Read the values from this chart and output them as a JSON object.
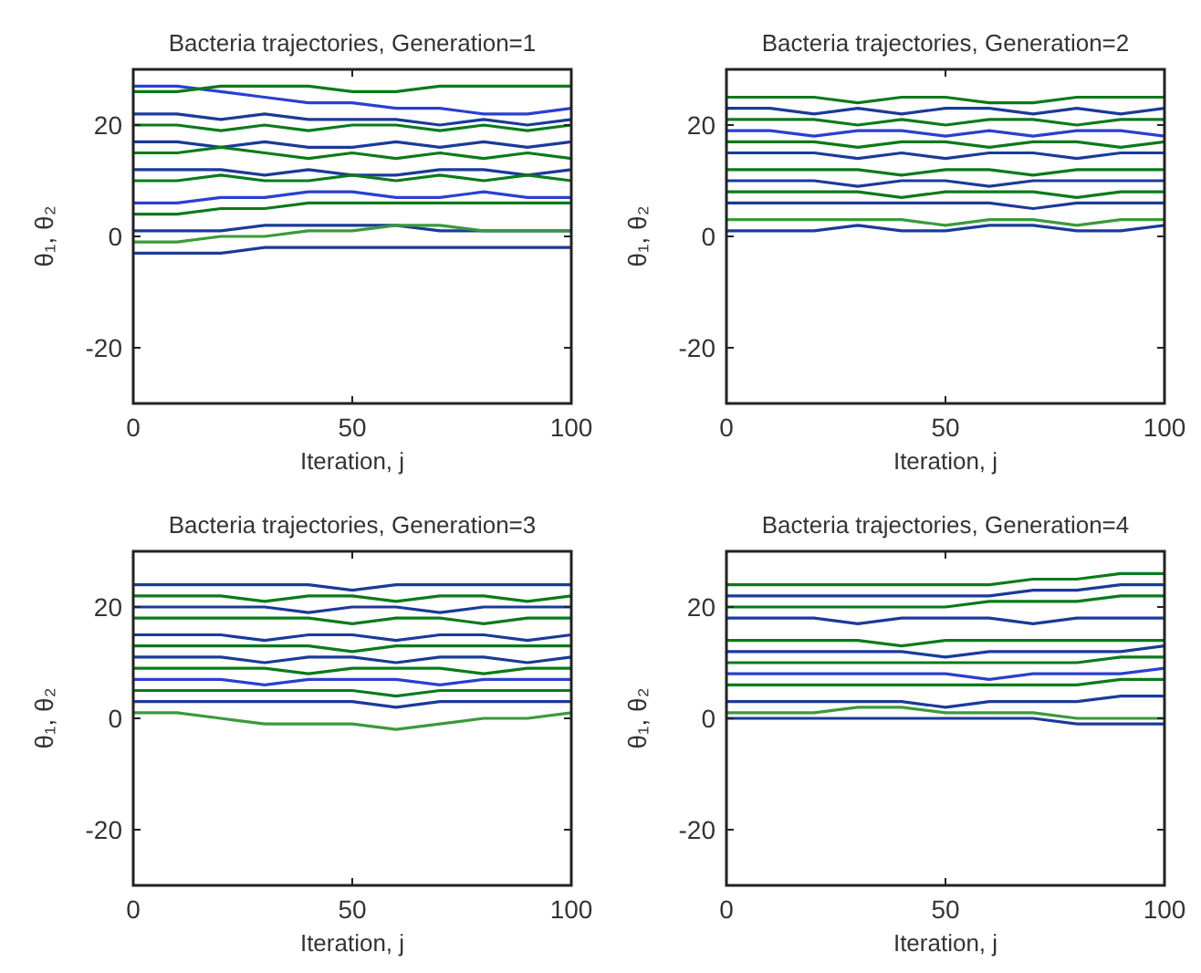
{
  "chart_data": [
    {
      "type": "line",
      "title": "Bacteria trajectories, Generation=1",
      "xlabel": "Iteration, j",
      "ylabel": "θ₁, θ₂",
      "x": [
        0,
        10,
        20,
        30,
        40,
        50,
        60,
        70,
        80,
        90,
        100
      ],
      "xlim": [
        0,
        100
      ],
      "xticks": [
        0,
        50,
        100
      ],
      "ylim": [
        -30,
        30
      ],
      "yticks": [
        -20,
        0,
        20
      ],
      "series": [
        {
          "color": "#2a3fd0",
          "values": [
            27,
            27,
            26,
            25,
            24,
            24,
            23,
            23,
            22,
            22,
            23
          ]
        },
        {
          "color": "#0a7a1a",
          "values": [
            26,
            26,
            27,
            27,
            27,
            26,
            26,
            27,
            27,
            27,
            27
          ]
        },
        {
          "color": "#1a3a9a",
          "values": [
            22,
            22,
            21,
            22,
            21,
            21,
            21,
            20,
            21,
            20,
            21
          ]
        },
        {
          "color": "#0a7a1a",
          "values": [
            20,
            20,
            19,
            20,
            19,
            20,
            20,
            19,
            20,
            19,
            20
          ]
        },
        {
          "color": "#1a3a9a",
          "values": [
            17,
            17,
            16,
            17,
            16,
            16,
            17,
            16,
            17,
            16,
            17
          ]
        },
        {
          "color": "#0a7a1a",
          "values": [
            15,
            15,
            16,
            15,
            14,
            15,
            14,
            15,
            14,
            15,
            14
          ]
        },
        {
          "color": "#1a3a9a",
          "values": [
            12,
            12,
            12,
            11,
            12,
            11,
            11,
            12,
            12,
            11,
            12
          ]
        },
        {
          "color": "#0a7a1a",
          "values": [
            10,
            10,
            11,
            10,
            10,
            11,
            10,
            11,
            10,
            11,
            10
          ]
        },
        {
          "color": "#2a3fd0",
          "values": [
            6,
            6,
            7,
            7,
            8,
            8,
            7,
            7,
            8,
            7,
            7
          ]
        },
        {
          "color": "#0a7a1a",
          "values": [
            4,
            4,
            5,
            5,
            6,
            6,
            6,
            6,
            6,
            6,
            6
          ]
        },
        {
          "color": "#1a3a9a",
          "values": [
            1,
            1,
            1,
            2,
            2,
            2,
            2,
            1,
            1,
            1,
            1
          ]
        },
        {
          "color": "#3a9a3a",
          "values": [
            -1,
            -1,
            0,
            0,
            1,
            1,
            2,
            2,
            1,
            1,
            1
          ]
        },
        {
          "color": "#1a3a9a",
          "values": [
            -3,
            -3,
            -3,
            -2,
            -2,
            -2,
            -2,
            -2,
            -2,
            -2,
            -2
          ]
        }
      ]
    },
    {
      "type": "line",
      "title": "Bacteria trajectories, Generation=2",
      "xlabel": "Iteration, j",
      "ylabel": "θ₁, θ₂",
      "x": [
        0,
        10,
        20,
        30,
        40,
        50,
        60,
        70,
        80,
        90,
        100
      ],
      "xlim": [
        0,
        100
      ],
      "xticks": [
        0,
        50,
        100
      ],
      "ylim": [
        -30,
        30
      ],
      "yticks": [
        -20,
        0,
        20
      ],
      "series": [
        {
          "color": "#0a7a1a",
          "values": [
            25,
            25,
            25,
            24,
            25,
            25,
            24,
            24,
            25,
            25,
            25
          ]
        },
        {
          "color": "#1a3a9a",
          "values": [
            23,
            23,
            22,
            23,
            22,
            23,
            23,
            22,
            23,
            22,
            23
          ]
        },
        {
          "color": "#0a7a1a",
          "values": [
            21,
            21,
            21,
            20,
            21,
            20,
            21,
            21,
            20,
            21,
            21
          ]
        },
        {
          "color": "#2a3fd0",
          "values": [
            19,
            19,
            18,
            19,
            19,
            18,
            19,
            18,
            19,
            19,
            18
          ]
        },
        {
          "color": "#0a7a1a",
          "values": [
            17,
            17,
            17,
            16,
            17,
            17,
            16,
            17,
            17,
            16,
            17
          ]
        },
        {
          "color": "#1a3a9a",
          "values": [
            15,
            15,
            15,
            14,
            15,
            14,
            15,
            15,
            14,
            15,
            15
          ]
        },
        {
          "color": "#0a7a1a",
          "values": [
            12,
            12,
            12,
            12,
            11,
            12,
            12,
            11,
            12,
            12,
            12
          ]
        },
        {
          "color": "#1a3a9a",
          "values": [
            10,
            10,
            10,
            9,
            10,
            10,
            9,
            10,
            10,
            10,
            10
          ]
        },
        {
          "color": "#0a7a1a",
          "values": [
            8,
            8,
            8,
            8,
            7,
            8,
            8,
            8,
            7,
            8,
            8
          ]
        },
        {
          "color": "#1a3a9a",
          "values": [
            6,
            6,
            6,
            6,
            6,
            6,
            6,
            5,
            6,
            6,
            6
          ]
        },
        {
          "color": "#3a9a3a",
          "values": [
            3,
            3,
            3,
            3,
            3,
            2,
            3,
            3,
            2,
            3,
            3
          ]
        },
        {
          "color": "#1a3a9a",
          "values": [
            1,
            1,
            1,
            2,
            1,
            1,
            2,
            2,
            1,
            1,
            2
          ]
        }
      ]
    },
    {
      "type": "line",
      "title": "Bacteria trajectories, Generation=3",
      "xlabel": "Iteration, j",
      "ylabel": "θ₁, θ₂",
      "x": [
        0,
        10,
        20,
        30,
        40,
        50,
        60,
        70,
        80,
        90,
        100
      ],
      "xlim": [
        0,
        100
      ],
      "xticks": [
        0,
        50,
        100
      ],
      "ylim": [
        -30,
        30
      ],
      "yticks": [
        -20,
        0,
        20
      ],
      "series": [
        {
          "color": "#1a3a9a",
          "values": [
            24,
            24,
            24,
            24,
            24,
            23,
            24,
            24,
            24,
            24,
            24
          ]
        },
        {
          "color": "#0a7a1a",
          "values": [
            22,
            22,
            22,
            21,
            22,
            22,
            21,
            22,
            22,
            21,
            22
          ]
        },
        {
          "color": "#1a3a9a",
          "values": [
            20,
            20,
            20,
            20,
            19,
            20,
            20,
            19,
            20,
            20,
            20
          ]
        },
        {
          "color": "#0a7a1a",
          "values": [
            18,
            18,
            18,
            18,
            18,
            17,
            18,
            18,
            17,
            18,
            18
          ]
        },
        {
          "color": "#1a3a9a",
          "values": [
            15,
            15,
            15,
            14,
            15,
            15,
            14,
            15,
            15,
            14,
            15
          ]
        },
        {
          "color": "#0a7a1a",
          "values": [
            13,
            13,
            13,
            13,
            13,
            12,
            13,
            13,
            13,
            13,
            13
          ]
        },
        {
          "color": "#1a3a9a",
          "values": [
            11,
            11,
            11,
            10,
            11,
            11,
            10,
            11,
            11,
            10,
            11
          ]
        },
        {
          "color": "#0a7a1a",
          "values": [
            9,
            9,
            9,
            9,
            8,
            9,
            9,
            9,
            8,
            9,
            9
          ]
        },
        {
          "color": "#2a3fd0",
          "values": [
            7,
            7,
            7,
            6,
            7,
            7,
            7,
            6,
            7,
            7,
            7
          ]
        },
        {
          "color": "#0a7a1a",
          "values": [
            5,
            5,
            5,
            5,
            5,
            5,
            4,
            5,
            5,
            5,
            5
          ]
        },
        {
          "color": "#1a3a9a",
          "values": [
            3,
            3,
            3,
            3,
            3,
            3,
            2,
            3,
            3,
            3,
            3
          ]
        },
        {
          "color": "#3a9a3a",
          "values": [
            1,
            1,
            0,
            -1,
            -1,
            -1,
            -2,
            -1,
            0,
            0,
            1
          ]
        }
      ]
    },
    {
      "type": "line",
      "title": "Bacteria trajectories, Generation=4",
      "xlabel": "Iteration, j",
      "ylabel": "θ₁, θ₂",
      "x": [
        0,
        10,
        20,
        30,
        40,
        50,
        60,
        70,
        80,
        90,
        100
      ],
      "xlim": [
        0,
        100
      ],
      "xticks": [
        0,
        50,
        100
      ],
      "ylim": [
        -30,
        30
      ],
      "yticks": [
        -20,
        0,
        20
      ],
      "series": [
        {
          "color": "#0a7a1a",
          "values": [
            24,
            24,
            24,
            24,
            24,
            24,
            24,
            25,
            25,
            26,
            26
          ]
        },
        {
          "color": "#1a3a9a",
          "values": [
            22,
            22,
            22,
            22,
            22,
            22,
            22,
            23,
            23,
            24,
            24
          ]
        },
        {
          "color": "#0a7a1a",
          "values": [
            20,
            20,
            20,
            20,
            20,
            20,
            21,
            21,
            21,
            22,
            22
          ]
        },
        {
          "color": "#1a3a9a",
          "values": [
            18,
            18,
            18,
            17,
            18,
            18,
            18,
            17,
            18,
            18,
            18
          ]
        },
        {
          "color": "#0a7a1a",
          "values": [
            14,
            14,
            14,
            14,
            13,
            14,
            14,
            14,
            14,
            14,
            14
          ]
        },
        {
          "color": "#1a3a9a",
          "values": [
            12,
            12,
            12,
            12,
            12,
            11,
            12,
            12,
            12,
            12,
            13
          ]
        },
        {
          "color": "#0a7a1a",
          "values": [
            10,
            10,
            10,
            10,
            10,
            10,
            10,
            10,
            10,
            11,
            11
          ]
        },
        {
          "color": "#2a3fd0",
          "values": [
            8,
            8,
            8,
            8,
            8,
            8,
            7,
            8,
            8,
            8,
            9
          ]
        },
        {
          "color": "#0a7a1a",
          "values": [
            6,
            6,
            6,
            6,
            6,
            6,
            6,
            6,
            6,
            7,
            7
          ]
        },
        {
          "color": "#1a3a9a",
          "values": [
            3,
            3,
            3,
            3,
            3,
            2,
            3,
            3,
            3,
            4,
            4
          ]
        },
        {
          "color": "#3a9a3a",
          "values": [
            1,
            1,
            1,
            2,
            2,
            1,
            1,
            1,
            0,
            0,
            0
          ]
        },
        {
          "color": "#1a3a9a",
          "values": [
            0,
            0,
            0,
            0,
            0,
            0,
            0,
            0,
            -1,
            -1,
            -1
          ]
        }
      ]
    }
  ]
}
